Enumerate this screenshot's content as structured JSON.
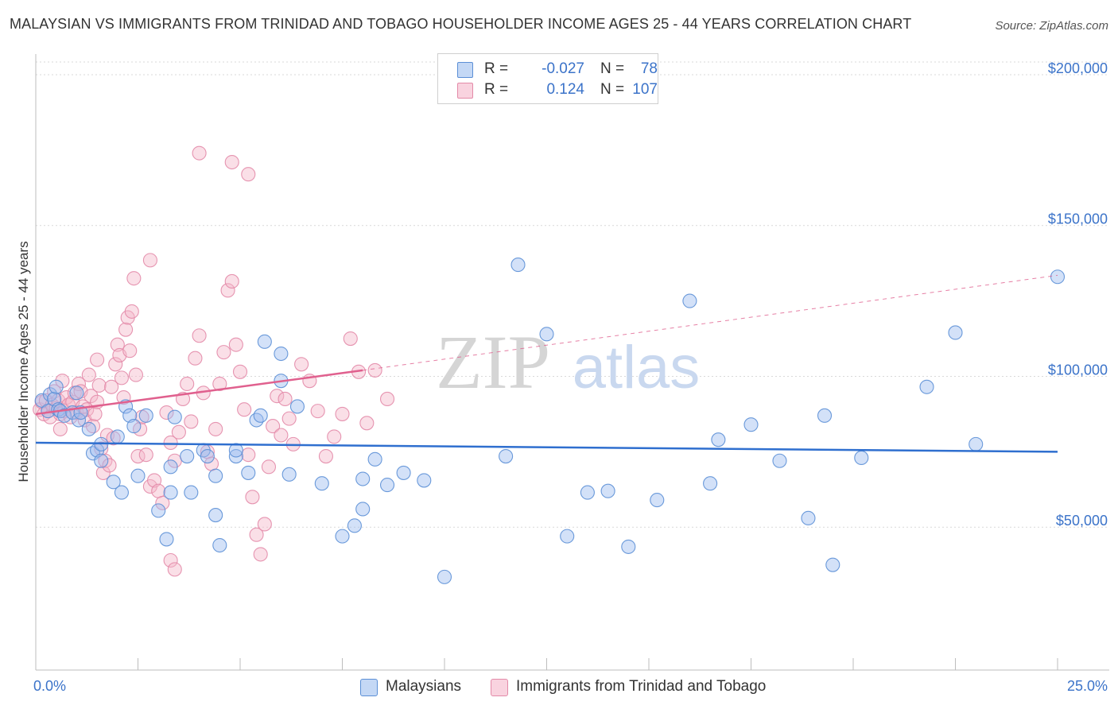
{
  "title": "MALAYSIAN VS IMMIGRANTS FROM TRINIDAD AND TOBAGO HOUSEHOLDER INCOME AGES 25 - 44 YEARS CORRELATION CHART",
  "source": "Source: ZipAtlas.com",
  "watermark": {
    "zip": "ZIP",
    "atlas": "atlas"
  },
  "legend": {
    "series": [
      {
        "r_label": "R =",
        "r_value": "-0.027",
        "n_label": "N =",
        "n_value": "78",
        "color": "#9dbdf0",
        "edge": "#5b8fd6"
      },
      {
        "r_label": "R =",
        "r_value": "0.124",
        "n_label": "N =",
        "n_value": "107",
        "color": "#f4b7ca",
        "edge": "#e38aa8"
      }
    ]
  },
  "bottom_legend": [
    "Malaysians",
    "Immigrants from Trinidad and Tobago"
  ],
  "chart_data": {
    "type": "scatter",
    "xlabel": "",
    "ylabel": "Householder Income Ages 25 - 44 years",
    "x_tick_labels": [
      "0.0%",
      "25.0%"
    ],
    "y_tick_labels": [
      "$50,000",
      "$100,000",
      "$150,000",
      "$200,000"
    ],
    "y_ticks": [
      50000,
      100000,
      150000,
      200000
    ],
    "xlim": [
      0,
      25
    ],
    "ylim": [
      0,
      205000
    ],
    "grid": true,
    "legend_position": "top-center",
    "series": [
      {
        "name": "Malaysians",
        "color": "#9dbdf0",
        "edge": "#5b8fd6",
        "trend": {
          "x": [
            0,
            25
          ],
          "y": [
            78000,
            75000
          ],
          "color": "#2f6fcf"
        },
        "points": [
          [
            0.15,
            92000
          ],
          [
            0.3,
            88500
          ],
          [
            0.35,
            94000
          ],
          [
            0.45,
            92500
          ],
          [
            0.5,
            96500
          ],
          [
            0.55,
            89000
          ],
          [
            0.6,
            88500
          ],
          [
            0.7,
            87000
          ],
          [
            0.9,
            88000
          ],
          [
            1.0,
            94500
          ],
          [
            1.05,
            85500
          ],
          [
            1.1,
            88000
          ],
          [
            1.3,
            82500
          ],
          [
            1.4,
            74500
          ],
          [
            1.5,
            75500
          ],
          [
            1.6,
            77500
          ],
          [
            1.6,
            72000
          ],
          [
            1.9,
            65000
          ],
          [
            2.0,
            80000
          ],
          [
            2.1,
            61500
          ],
          [
            2.2,
            90000
          ],
          [
            2.3,
            87000
          ],
          [
            2.4,
            83500
          ],
          [
            2.5,
            67000
          ],
          [
            2.7,
            87000
          ],
          [
            3.0,
            55500
          ],
          [
            3.2,
            46000
          ],
          [
            3.3,
            61500
          ],
          [
            3.3,
            70000
          ],
          [
            3.4,
            86500
          ],
          [
            3.7,
            73500
          ],
          [
            3.8,
            61500
          ],
          [
            4.1,
            75500
          ],
          [
            4.2,
            73500
          ],
          [
            4.4,
            67000
          ],
          [
            4.4,
            54000
          ],
          [
            4.5,
            44000
          ],
          [
            4.9,
            73500
          ],
          [
            4.9,
            75500
          ],
          [
            5.2,
            68000
          ],
          [
            5.4,
            85500
          ],
          [
            5.5,
            87000
          ],
          [
            5.6,
            111500
          ],
          [
            6.0,
            98500
          ],
          [
            6.0,
            107500
          ],
          [
            6.2,
            67500
          ],
          [
            6.4,
            90000
          ],
          [
            7.0,
            64500
          ],
          [
            7.5,
            47000
          ],
          [
            7.8,
            50500
          ],
          [
            8.0,
            66000
          ],
          [
            8.0,
            56000
          ],
          [
            8.3,
            72500
          ],
          [
            8.6,
            64000
          ],
          [
            9.0,
            68000
          ],
          [
            9.5,
            65500
          ],
          [
            10.0,
            33500
          ],
          [
            11.5,
            73500
          ],
          [
            11.8,
            137000
          ],
          [
            12.5,
            114000
          ],
          [
            13.0,
            47000
          ],
          [
            13.5,
            61500
          ],
          [
            14.0,
            62000
          ],
          [
            14.5,
            43500
          ],
          [
            15.2,
            59000
          ],
          [
            16.0,
            125000
          ],
          [
            16.5,
            64500
          ],
          [
            16.7,
            79000
          ],
          [
            17.5,
            84000
          ],
          [
            18.2,
            72000
          ],
          [
            18.9,
            53000
          ],
          [
            19.3,
            87000
          ],
          [
            19.5,
            37500
          ],
          [
            20.2,
            73000
          ],
          [
            21.8,
            96500
          ],
          [
            22.5,
            114500
          ],
          [
            23.0,
            77500
          ],
          [
            25.0,
            133000
          ]
        ]
      },
      {
        "name": "Immigrants from Trinidad and Tobago",
        "color": "#f4b7ca",
        "edge": "#e38aa8",
        "trend": {
          "x": [
            0,
            8
          ],
          "y": [
            87500,
            102000
          ],
          "color": "#e0608e",
          "dashed_x": [
            8,
            25
          ],
          "dashed_y": [
            102000,
            133500
          ]
        },
        "points": [
          [
            0.1,
            89000
          ],
          [
            0.15,
            91500
          ],
          [
            0.2,
            87500
          ],
          [
            0.25,
            92000
          ],
          [
            0.3,
            88500
          ],
          [
            0.35,
            86500
          ],
          [
            0.4,
            90500
          ],
          [
            0.45,
            95000
          ],
          [
            0.5,
            89500
          ],
          [
            0.55,
            92000
          ],
          [
            0.6,
            87500
          ],
          [
            0.65,
            98500
          ],
          [
            0.7,
            88500
          ],
          [
            0.75,
            93000
          ],
          [
            0.8,
            90500
          ],
          [
            0.85,
            86500
          ],
          [
            0.9,
            91500
          ],
          [
            0.95,
            94500
          ],
          [
            1.0,
            88000
          ],
          [
            1.05,
            97500
          ],
          [
            1.1,
            95000
          ],
          [
            1.15,
            90000
          ],
          [
            1.2,
            85500
          ],
          [
            1.25,
            89000
          ],
          [
            1.3,
            100500
          ],
          [
            1.35,
            93500
          ],
          [
            1.4,
            83500
          ],
          [
            1.45,
            87500
          ],
          [
            1.5,
            91500
          ],
          [
            1.55,
            97000
          ],
          [
            1.6,
            76000
          ],
          [
            1.65,
            68000
          ],
          [
            1.7,
            72000
          ],
          [
            1.75,
            80500
          ],
          [
            1.8,
            70500
          ],
          [
            1.85,
            96500
          ],
          [
            1.9,
            79500
          ],
          [
            1.95,
            104000
          ],
          [
            2.0,
            110500
          ],
          [
            2.05,
            107000
          ],
          [
            2.1,
            99500
          ],
          [
            2.15,
            93000
          ],
          [
            2.2,
            115500
          ],
          [
            2.25,
            119500
          ],
          [
            2.3,
            108500
          ],
          [
            2.35,
            121500
          ],
          [
            2.4,
            132500
          ],
          [
            2.45,
            100500
          ],
          [
            2.5,
            73500
          ],
          [
            2.55,
            82500
          ],
          [
            2.6,
            86500
          ],
          [
            2.7,
            74000
          ],
          [
            2.8,
            63500
          ],
          [
            2.9,
            65500
          ],
          [
            3.0,
            62000
          ],
          [
            3.1,
            58000
          ],
          [
            3.2,
            88000
          ],
          [
            3.3,
            78000
          ],
          [
            3.4,
            72000
          ],
          [
            3.5,
            81500
          ],
          [
            3.6,
            92500
          ],
          [
            3.7,
            97500
          ],
          [
            3.8,
            85000
          ],
          [
            3.9,
            106000
          ],
          [
            4.0,
            113500
          ],
          [
            4.1,
            94500
          ],
          [
            4.2,
            75000
          ],
          [
            4.3,
            71000
          ],
          [
            4.4,
            82500
          ],
          [
            4.5,
            97500
          ],
          [
            4.6,
            108000
          ],
          [
            4.7,
            128500
          ],
          [
            4.8,
            131500
          ],
          [
            4.9,
            110500
          ],
          [
            5.0,
            101500
          ],
          [
            5.1,
            89000
          ],
          [
            5.2,
            74000
          ],
          [
            5.3,
            60000
          ],
          [
            5.4,
            47500
          ],
          [
            5.5,
            41000
          ],
          [
            5.6,
            51000
          ],
          [
            5.7,
            70000
          ],
          [
            5.8,
            83500
          ],
          [
            5.9,
            93500
          ],
          [
            6.0,
            80500
          ],
          [
            6.1,
            92500
          ],
          [
            6.2,
            86000
          ],
          [
            6.3,
            77500
          ],
          [
            6.5,
            104000
          ],
          [
            6.7,
            98500
          ],
          [
            6.9,
            88500
          ],
          [
            7.1,
            73500
          ],
          [
            7.3,
            80000
          ],
          [
            7.5,
            87500
          ],
          [
            7.7,
            112500
          ],
          [
            7.9,
            101500
          ],
          [
            8.1,
            84500
          ],
          [
            8.3,
            102000
          ],
          [
            8.6,
            92500
          ],
          [
            4.0,
            174000
          ],
          [
            4.8,
            171000
          ],
          [
            5.2,
            167000
          ],
          [
            2.8,
            138500
          ],
          [
            1.5,
            105500
          ],
          [
            0.6,
            82500
          ],
          [
            3.3,
            39000
          ],
          [
            3.4,
            36000
          ]
        ]
      }
    ]
  }
}
